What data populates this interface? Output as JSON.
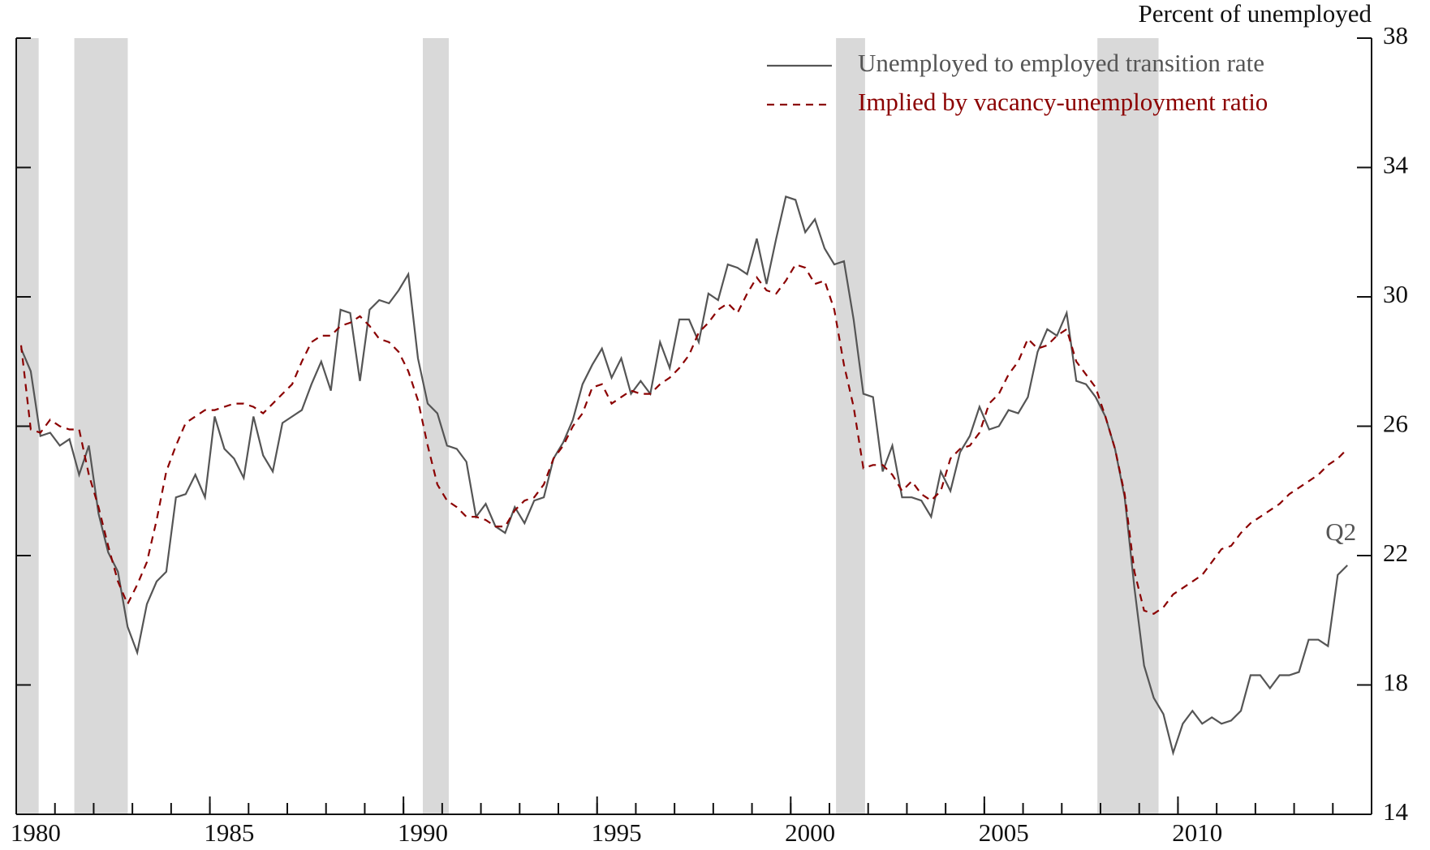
{
  "chart_data": {
    "type": "line",
    "y_axis_label": "Percent of unemployed",
    "annotation": "Q2",
    "legend": "upper right",
    "grid": false,
    "xlim": [
      1980,
      2015
    ],
    "ylim": [
      14,
      38
    ],
    "yticks": [
      14,
      18,
      22,
      26,
      30,
      34,
      38
    ],
    "xticks": [
      1980,
      1985,
      1990,
      1995,
      2000,
      2005,
      2010
    ],
    "xminorticks": [
      1980,
      1981,
      1982,
      1983,
      1984,
      1985,
      1986,
      1987,
      1988,
      1989,
      1990,
      1991,
      1992,
      1993,
      1994,
      1995,
      1996,
      1997,
      1998,
      1999,
      2000,
      2001,
      2002,
      2003,
      2004,
      2005,
      2006,
      2007,
      2008,
      2009,
      2010,
      2011,
      2012,
      2013,
      2014
    ],
    "recessions": [
      [
        1980.0,
        1980.58
      ],
      [
        1981.5,
        1982.88
      ],
      [
        1990.5,
        1991.17
      ],
      [
        2001.17,
        2001.92
      ],
      [
        2007.92,
        2009.5
      ]
    ],
    "recession_color": "#d9d9d9",
    "x": [
      1980.125,
      1980.375,
      1980.625,
      1980.875,
      1981.125,
      1981.375,
      1981.625,
      1981.875,
      1982.125,
      1982.375,
      1982.625,
      1982.875,
      1983.125,
      1983.375,
      1983.625,
      1983.875,
      1984.125,
      1984.375,
      1984.625,
      1984.875,
      1985.125,
      1985.375,
      1985.625,
      1985.875,
      1986.125,
      1986.375,
      1986.625,
      1986.875,
      1987.125,
      1987.375,
      1987.625,
      1987.875,
      1988.125,
      1988.375,
      1988.625,
      1988.875,
      1989.125,
      1989.375,
      1989.625,
      1989.875,
      1990.125,
      1990.375,
      1990.625,
      1990.875,
      1991.125,
      1991.375,
      1991.625,
      1991.875,
      1992.125,
      1992.375,
      1992.625,
      1992.875,
      1993.125,
      1993.375,
      1993.625,
      1993.875,
      1994.125,
      1994.375,
      1994.625,
      1994.875,
      1995.125,
      1995.375,
      1995.625,
      1995.875,
      1996.125,
      1996.375,
      1996.625,
      1996.875,
      1997.125,
      1997.375,
      1997.625,
      1997.875,
      1998.125,
      1998.375,
      1998.625,
      1998.875,
      1999.125,
      1999.375,
      1999.625,
      1999.875,
      2000.125,
      2000.375,
      2000.625,
      2000.875,
      2001.125,
      2001.375,
      2001.625,
      2001.875,
      2002.125,
      2002.375,
      2002.625,
      2002.875,
      2003.125,
      2003.375,
      2003.625,
      2003.875,
      2004.125,
      2004.375,
      2004.625,
      2004.875,
      2005.125,
      2005.375,
      2005.625,
      2005.875,
      2006.125,
      2006.375,
      2006.625,
      2006.875,
      2007.125,
      2007.375,
      2007.625,
      2007.875,
      2008.125,
      2008.375,
      2008.625,
      2008.875,
      2009.125,
      2009.375,
      2009.625,
      2009.875,
      2010.125,
      2010.375,
      2010.625,
      2010.875,
      2011.125,
      2011.375,
      2011.625,
      2011.875,
      2012.125,
      2012.375,
      2012.625,
      2012.875,
      2013.125,
      2013.375,
      2013.625,
      2013.875,
      2014.125,
      2014.375
    ],
    "series": [
      {
        "name": "Unemployed to employed transition rate",
        "color": "#555555",
        "style": "solid",
        "values": [
          28.4,
          27.7,
          25.7,
          25.8,
          25.4,
          25.6,
          24.5,
          25.4,
          23.3,
          22.1,
          21.5,
          19.8,
          19.0,
          20.5,
          21.2,
          21.5,
          23.8,
          23.9,
          24.5,
          23.8,
          26.3,
          25.3,
          25.0,
          24.4,
          26.3,
          25.1,
          24.6,
          26.1,
          26.3,
          26.5,
          27.3,
          28.0,
          27.1,
          29.6,
          29.5,
          27.4,
          29.6,
          29.9,
          29.8,
          30.2,
          30.7,
          28.1,
          26.7,
          26.4,
          25.4,
          25.3,
          24.9,
          23.2,
          23.6,
          22.9,
          22.7,
          23.5,
          23.0,
          23.7,
          23.8,
          25.0,
          25.5,
          26.2,
          27.3,
          27.9,
          28.4,
          27.5,
          28.1,
          27.0,
          27.4,
          27.0,
          28.6,
          27.8,
          29.3,
          29.3,
          28.6,
          30.1,
          29.9,
          31.0,
          30.9,
          30.7,
          31.8,
          30.4,
          31.8,
          33.1,
          33.0,
          32.0,
          32.4,
          31.5,
          31.0,
          31.1,
          29.3,
          27.0,
          26.9,
          24.6,
          25.4,
          23.8,
          23.8,
          23.7,
          23.2,
          24.6,
          24.0,
          25.2,
          25.7,
          26.6,
          25.9,
          26.0,
          26.5,
          26.4,
          26.9,
          28.3,
          29.0,
          28.8,
          29.5,
          27.4,
          27.3,
          26.9,
          26.3,
          25.3,
          23.8,
          21.0,
          18.6,
          17.6,
          17.1,
          15.9,
          16.8,
          17.2,
          16.8,
          17.0,
          16.8,
          16.9,
          17.2,
          18.3,
          18.3,
          17.9,
          18.3,
          18.3,
          18.4,
          19.4,
          19.4,
          19.2,
          21.4,
          21.7
        ]
      },
      {
        "name": "Implied by vacancy-unemployment ratio",
        "color": "#8b0000",
        "style": "dashed",
        "values": [
          28.5,
          25.9,
          25.8,
          26.2,
          26.0,
          25.9,
          25.9,
          24.5,
          23.5,
          22.3,
          21.2,
          20.5,
          21.1,
          21.8,
          23.1,
          24.6,
          25.4,
          26.1,
          26.3,
          26.5,
          26.5,
          26.6,
          26.7,
          26.7,
          26.6,
          26.4,
          26.7,
          27.0,
          27.3,
          28.0,
          28.6,
          28.8,
          28.8,
          29.1,
          29.2,
          29.4,
          29.1,
          28.7,
          28.6,
          28.3,
          27.7,
          26.8,
          25.4,
          24.2,
          23.7,
          23.5,
          23.2,
          23.2,
          23.1,
          22.9,
          22.9,
          23.4,
          23.7,
          23.8,
          24.2,
          25.0,
          25.4,
          26.0,
          26.4,
          27.2,
          27.3,
          26.7,
          26.9,
          27.1,
          27.0,
          27.0,
          27.3,
          27.5,
          27.8,
          28.2,
          28.9,
          29.2,
          29.6,
          29.8,
          29.5,
          30.1,
          30.6,
          30.2,
          30.1,
          30.5,
          31.0,
          30.9,
          30.4,
          30.5,
          29.6,
          27.9,
          26.6,
          24.7,
          24.8,
          24.8,
          24.5,
          24.0,
          24.3,
          23.9,
          23.7,
          24.0,
          25.0,
          25.3,
          25.4,
          25.8,
          26.7,
          27.0,
          27.6,
          28.0,
          28.7,
          28.4,
          28.5,
          28.8,
          29.0,
          28.0,
          27.6,
          27.2,
          26.3,
          25.3,
          23.9,
          21.5,
          20.3,
          20.2,
          20.4,
          20.8,
          21.0,
          21.2,
          21.4,
          21.8,
          22.2,
          22.3,
          22.7,
          23.0,
          23.2,
          23.4,
          23.6,
          23.9,
          24.1,
          24.3,
          24.5,
          24.8,
          25.0,
          25.3
        ]
      }
    ]
  }
}
